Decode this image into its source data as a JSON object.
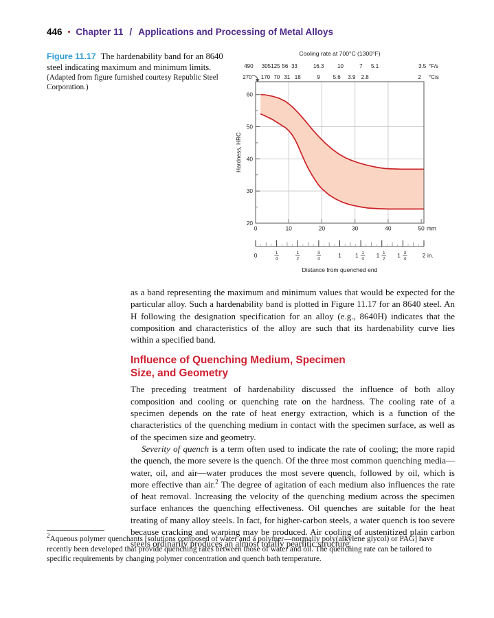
{
  "page_header": {
    "number": "446",
    "bullet": "•",
    "chapter": "Chapter 11",
    "slash": "/",
    "title": "Applications and Processing of Metal Alloys"
  },
  "figure": {
    "label": "Figure 11.17",
    "caption": "The hardenability band for an 8640 steel indicating maximum and minimum limits.",
    "credit": "(Adapted from figure furnished courtesy Republic Steel Corporation.)"
  },
  "chart_data": {
    "type": "area",
    "top_axis_title": "Cooling rate at 700°C (1300°F)",
    "ylabel": "Hardness, HRC",
    "xlabel": "Distance from quenched end",
    "ylim": [
      20,
      64
    ],
    "xlim_mm": [
      0,
      50.8
    ],
    "y_major_ticks": [
      20,
      30,
      40,
      50,
      60
    ],
    "y_minor_ticks": [
      25,
      35,
      45,
      55
    ],
    "x_major_ticks_mm": [
      0,
      10,
      20,
      30,
      40,
      50
    ],
    "x_unit": "mm",
    "grid_y": [
      30,
      40,
      50
    ],
    "grid_x_mm": [
      10,
      20,
      30,
      40
    ],
    "grid_color": "#cccccc",
    "top_axis_rows": [
      {
        "unit": "°F/s",
        "labels": [
          "490",
          "305",
          "125",
          "56",
          "33",
          "16.3",
          "10",
          "7",
          "5.1",
          "3.5"
        ],
        "mm": [
          -2.1,
          3.2,
          6.0,
          8.9,
          11.7,
          19.0,
          25.6,
          31.8,
          36.0,
          50.3
        ]
      },
      {
        "unit": "°C/s",
        "labels": [
          "270",
          "170",
          "70",
          "31",
          "18",
          "9",
          "5.6",
          "3.9",
          "2.8",
          "2"
        ],
        "mm": [
          -2.5,
          3.0,
          6.4,
          9.5,
          12.7,
          19.0,
          24.5,
          29.0,
          33.0,
          49.5
        ]
      }
    ],
    "inch_axis": {
      "unit": "in.",
      "labels": [
        "0",
        "1/4",
        "1/2",
        "3/4",
        "1",
        "1 1/4",
        "1 1/2",
        "1 3/4",
        "2"
      ],
      "inches": [
        0,
        0.25,
        0.5,
        0.75,
        1,
        1.25,
        1.5,
        1.75,
        2
      ],
      "mm_per_inch": 25.4
    },
    "band": {
      "fill": "#fad5c3",
      "stroke": "#cc2127",
      "upper_mm_hrc": [
        [
          1.5,
          60
        ],
        [
          3,
          59.9
        ],
        [
          5,
          59.5
        ],
        [
          7,
          58.9
        ],
        [
          9,
          57.9
        ],
        [
          11,
          56.3
        ],
        [
          13,
          54.2
        ],
        [
          15,
          51.8
        ],
        [
          17,
          49.3
        ],
        [
          19,
          47.0
        ],
        [
          21,
          44.9
        ],
        [
          23,
          43.1
        ],
        [
          25,
          41.6
        ],
        [
          27,
          40.4
        ],
        [
          29,
          39.5
        ],
        [
          31,
          38.8
        ],
        [
          33,
          38.2
        ],
        [
          35,
          37.7
        ],
        [
          37,
          37.3
        ],
        [
          39,
          37.0
        ],
        [
          41,
          36.9
        ],
        [
          44,
          36.8
        ],
        [
          47,
          36.8
        ],
        [
          50.8,
          36.8
        ]
      ],
      "lower_mm_hrc": [
        [
          1.5,
          54
        ],
        [
          3,
          53.3
        ],
        [
          5,
          52.3
        ],
        [
          7,
          51.0
        ],
        [
          9,
          49.7
        ],
        [
          10,
          48.8
        ],
        [
          11,
          47.5
        ],
        [
          12,
          45.8
        ],
        [
          13,
          43.6
        ],
        [
          14,
          41.2
        ],
        [
          15,
          38.9
        ],
        [
          16,
          36.8
        ],
        [
          17,
          35.0
        ],
        [
          18,
          33.4
        ],
        [
          19,
          31.9
        ],
        [
          20,
          30.7
        ],
        [
          22,
          28.9
        ],
        [
          24,
          27.6
        ],
        [
          26,
          26.6
        ],
        [
          28,
          25.9
        ],
        [
          30,
          25.4
        ],
        [
          32,
          25.0
        ],
        [
          34,
          24.7
        ],
        [
          37,
          24.5
        ],
        [
          40,
          24.4
        ],
        [
          44,
          24.4
        ],
        [
          47,
          24.4
        ],
        [
          50.8,
          24.4
        ]
      ]
    }
  },
  "body": {
    "para1": "as a band representing the maximum and minimum values that would be expected for the particular alloy. Such a hardenability band is plotted in Figure 11.17 for an 8640 steel. An H following the designation specification for an alloy (e.g., 8640H) indicates that the composition and characteristics of the alloy are such that its hardenability curve lies within a specified band.",
    "heading_lines": [
      "Influence of Quenching Medium, Specimen",
      "Size, and Geometry"
    ],
    "para2": "The preceding treatment of hardenability discussed the influence of both alloy composition and cooling or quenching rate on the hardness. The cooling rate of a specimen depends on the rate of heat energy extraction, which is a function of the characteristics of the quenching medium in contact with the specimen surface, as well as of the specimen size and geometry.",
    "para3": {
      "lead": "Severity of quench",
      "text1": " is a term often used to indicate the rate of cooling; the more rapid the quench, the more severe is the quench. Of the three most common quenching media—water, oil, and air—water produces the most severe quench, followed by oil, which is more effective than air.",
      "footref": "2",
      "text2": " The degree of agitation of each medium also influences the rate of heat removal. Increasing the velocity of the quenching medium across the specimen surface enhances the quenching effectiveness. Oil quenches are suitable for the heat treating of many alloy steels. In fact, for higher-carbon steels, a water quench is too severe because cracking and warping may be produced. Air cooling of austenitized plain carbon steels ordinarily produces an almost totally pearlitic structure."
    }
  },
  "footnote": {
    "marker": "2",
    "text": "Aqueous polymer quenchants [solutions composed of water and a polymer—normally poly(alkylene glycol) or PAG] have recently been developed that provide quenching rates between those of water and oil. The quenching rate can be tailored to specific requirements by changing polymer concentration and quench bath temperature."
  }
}
